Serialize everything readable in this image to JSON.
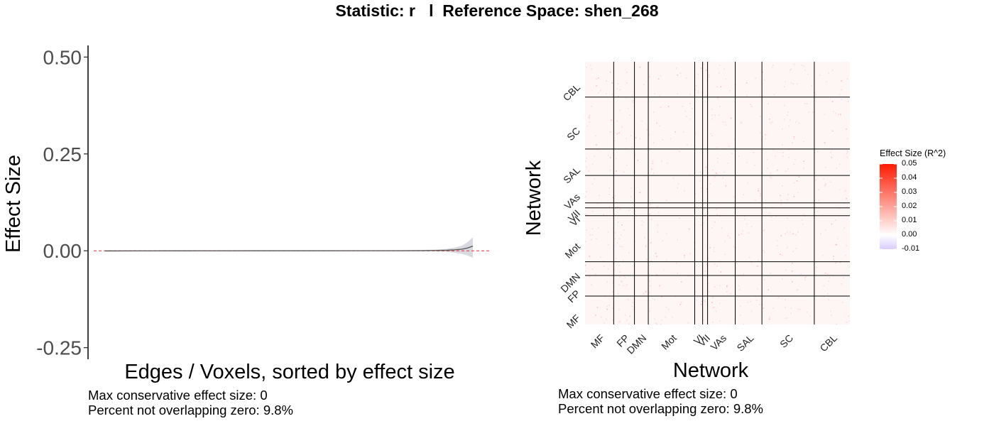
{
  "header": {
    "statistic_label": "Statistic: r",
    "separator": "l",
    "space_label": "Reference Space: shen_268"
  },
  "left_panel": {
    "caption_line1": "Max conservative effect size: 0",
    "caption_line2": "Percent not overlapping zero: 9.8%"
  },
  "right_panel": {
    "caption_line1": "Max conservative effect size: 0",
    "caption_line2": "Percent not overlapping zero: 9.8%"
  },
  "colors": {
    "reference_line": "#e03030",
    "ci_band": "#b8b8c8",
    "heat_high": "#ff1a00",
    "heat_zero": "#ffffff",
    "heat_low": "#d9ccff",
    "grid_line": "#000000",
    "axis_text": "#4d4d4d"
  },
  "chart_data": [
    {
      "type": "line",
      "title": "",
      "xlabel": "Edges / Voxels, sorted by effect size",
      "ylabel": "Effect Size",
      "ylim": [
        -0.28,
        0.53
      ],
      "yticks": [
        -0.25,
        0,
        0.25,
        0.5
      ],
      "ytick_labels": [
        "-0.25",
        "0.00",
        "0.25",
        "0.50"
      ],
      "xlim": [
        0,
        1
      ],
      "reference_line": {
        "y": 0,
        "style": "dashed"
      },
      "series": [
        {
          "x": [
            0,
            0.1,
            0.2,
            0.3,
            0.4,
            0.5,
            0.6,
            0.7,
            0.8,
            0.86,
            0.9,
            0.93,
            0.95,
            0.97,
            0.985,
            1.0
          ],
          "y": [
            -0.0004,
            -0.0003,
            -0.0002,
            -0.0001,
            0,
            0,
            0,
            0.0001,
            0.0002,
            0.0004,
            0.0008,
            0.0015,
            0.0025,
            0.004,
            0.007,
            0.012
          ],
          "lower": [
            -0.002,
            -0.0015,
            -0.0012,
            -0.001,
            -0.0008,
            -0.0008,
            -0.0008,
            -0.001,
            -0.0012,
            -0.0015,
            -0.002,
            -0.003,
            -0.005,
            -0.008,
            -0.012,
            -0.018
          ],
          "upper": [
            0.001,
            0.001,
            0.001,
            0.001,
            0.001,
            0.001,
            0.001,
            0.0012,
            0.0016,
            0.002,
            0.003,
            0.005,
            0.008,
            0.013,
            0.022,
            0.035
          ]
        }
      ],
      "grid": false
    },
    {
      "type": "heatmap",
      "title": "",
      "xlabel": "Network",
      "ylabel": "Network",
      "networks": [
        "MF",
        "FP",
        "DMN",
        "Mot",
        "VI",
        "VII",
        "VAs",
        "SAL",
        "SC",
        "CBL"
      ],
      "boundaries": [
        29,
        50,
        64,
        111,
        119,
        124,
        152,
        179,
        232,
        268
      ],
      "total_nodes": 268,
      "legend": {
        "title": "Effect Size (R^2)",
        "min": -0.01,
        "max": 0.05,
        "ticks": [
          0.05,
          0.04,
          0.03,
          0.02,
          0.01,
          0.0,
          -0.01
        ],
        "tick_labels": [
          "0.05",
          "0.04",
          "0.03",
          "0.02",
          "0.01",
          "0.00",
          "-0.01"
        ],
        "position": "right"
      }
    }
  ]
}
